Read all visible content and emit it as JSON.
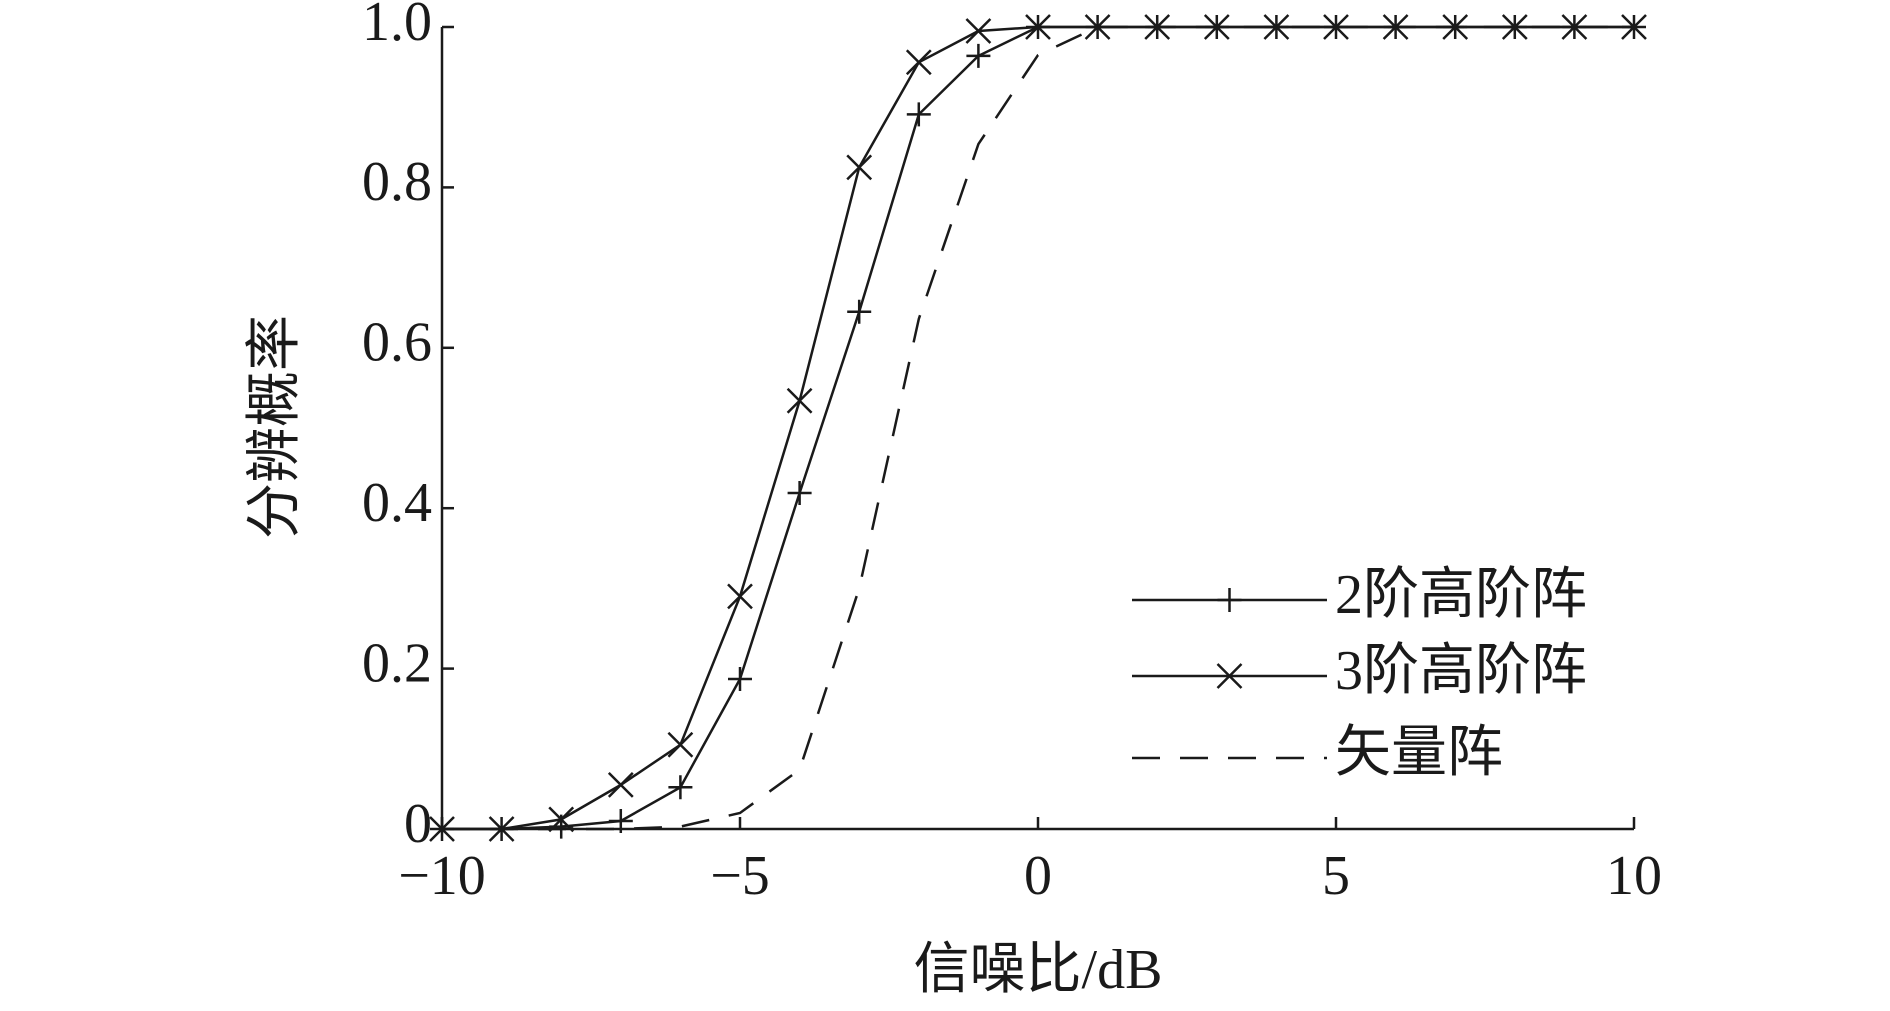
{
  "chart_data": {
    "type": "line",
    "x_label": "信噪比/dB",
    "y_label": "分辨概率",
    "x": [
      -10,
      -9,
      -8,
      -7,
      -6,
      -5,
      -4,
      -3,
      -2,
      -1,
      0,
      1,
      2,
      3,
      4,
      5,
      6,
      7,
      8,
      9,
      10
    ],
    "series": [
      {
        "name": "2阶高阶阵",
        "color": "#1a1a1a",
        "marker": "plus",
        "dash": "solid",
        "values": [
          0,
          0,
          0.003,
          0.01,
          0.052,
          0.187,
          0.419,
          0.645,
          0.891,
          0.964,
          1,
          1,
          1,
          1,
          1,
          1,
          1,
          1,
          1,
          1,
          1
        ]
      },
      {
        "name": "3阶高阶阵",
        "color": "#1a1a1a",
        "marker": "x",
        "dash": "solid",
        "values": [
          0,
          0,
          0.012,
          0.055,
          0.105,
          0.29,
          0.534,
          0.825,
          0.956,
          0.995,
          1,
          1,
          1,
          1,
          1,
          1,
          1,
          1,
          1,
          1,
          1
        ]
      },
      {
        "name": "矢量阵",
        "color": "#1a1a1a",
        "marker": "none",
        "dash": "dashed",
        "values": [
          0,
          0,
          0,
          0,
          0.003,
          0.02,
          0.074,
          0.3,
          0.636,
          0.854,
          0.965,
          1,
          1,
          1,
          1,
          1,
          1,
          1,
          1,
          1,
          1
        ]
      }
    ],
    "xlim": [
      -10,
      10
    ],
    "xticks": [
      {
        "value": -10,
        "label": "−10"
      },
      {
        "value": -5,
        "label": "−5"
      },
      0,
      5,
      10
    ],
    "ylim": [
      0,
      1
    ],
    "yticks": [
      0,
      0.2,
      0.4,
      0.6,
      0.8,
      {
        "value": 1,
        "label": "1.0"
      }
    ],
    "grid": false,
    "legend": "lower right"
  }
}
